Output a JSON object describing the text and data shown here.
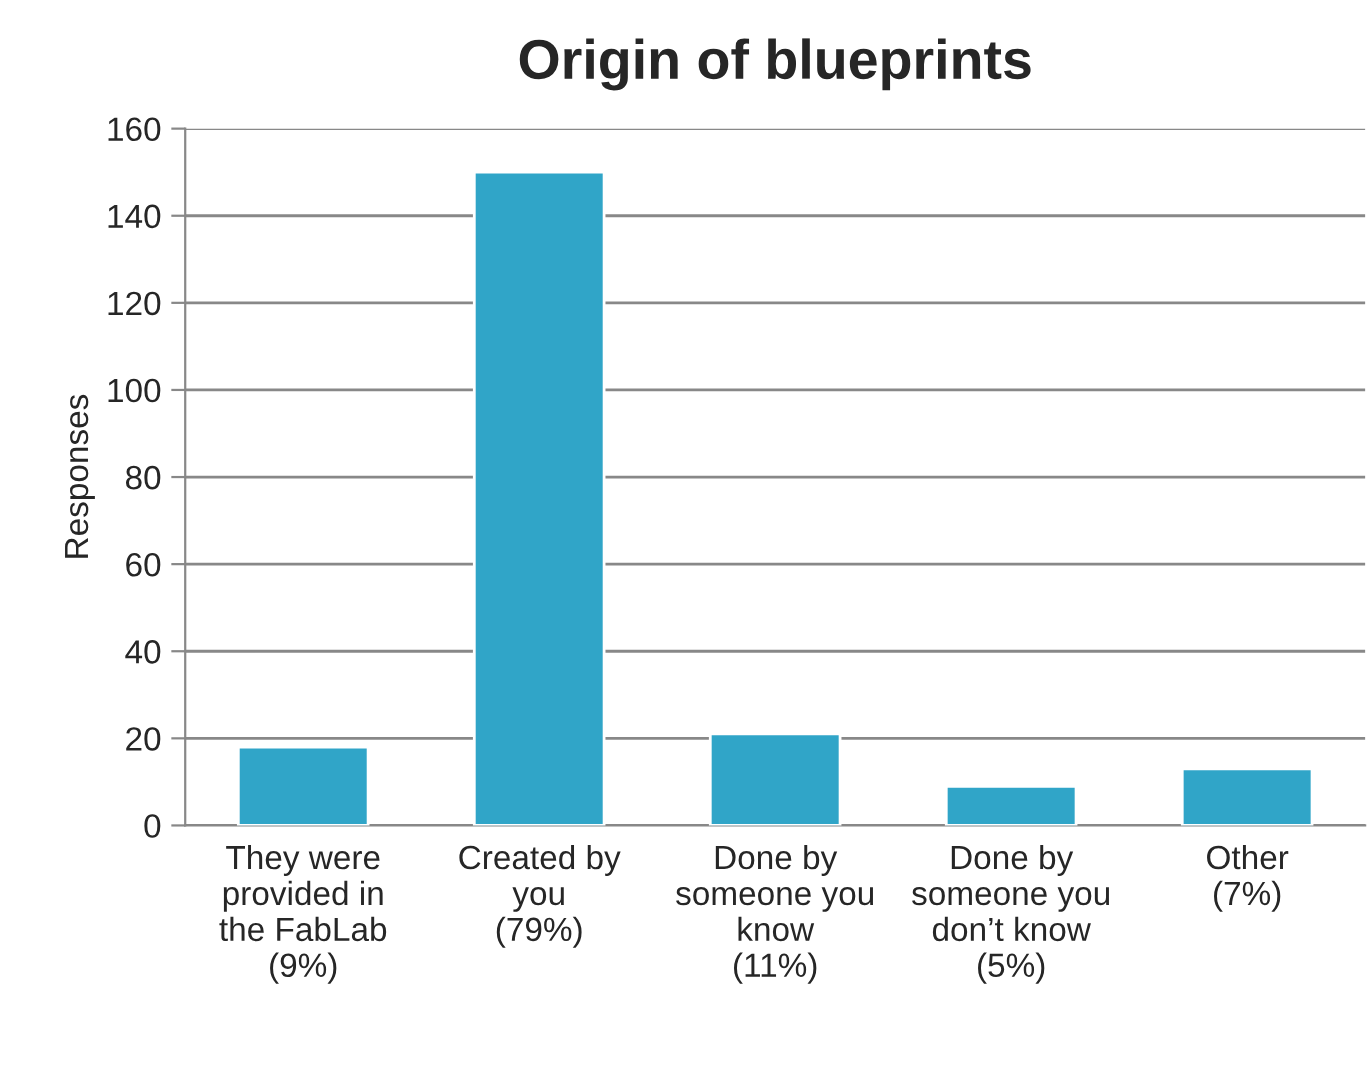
{
  "chart_data": {
    "type": "bar",
    "title": "Origin of blueprints",
    "ylabel": "Responses",
    "categories": [
      "They were\nprovided in\nthe FabLab\n(9%)",
      "Created by\nyou\n(79%)",
      "Done by\nsomeone you\nknow\n(11%)",
      "Done by\nsomeone you\ndon’t know\n(5%)",
      "Other\n(7%)"
    ],
    "values": [
      18,
      150,
      21,
      9,
      13
    ],
    "color": "#30a5c8",
    "ylim": [
      0,
      160
    ],
    "yticks": [
      0,
      20,
      40,
      60,
      80,
      100,
      120,
      140,
      160
    ],
    "grid": "y",
    "legend": false
  }
}
